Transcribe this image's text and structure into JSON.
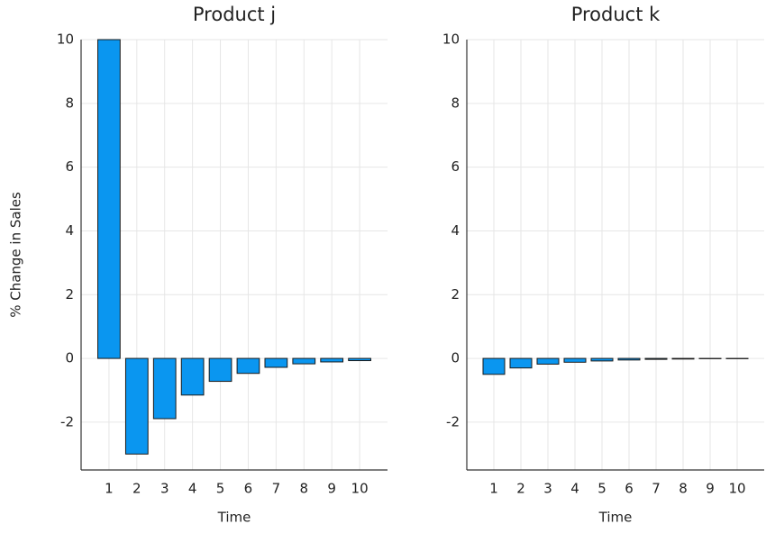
{
  "chart_data": [
    {
      "type": "bar",
      "title": "Product j",
      "xlabel": "Time",
      "ylabel": "% Change in Sales",
      "x": [
        1,
        2,
        3,
        4,
        5,
        6,
        7,
        8,
        9,
        10
      ],
      "values": [
        10,
        -3.0,
        -1.89,
        -1.15,
        -0.72,
        -0.47,
        -0.28,
        -0.17,
        -0.11,
        -0.07
      ],
      "color": "#0a96f0",
      "xlim": [
        0,
        11
      ],
      "xticks": [
        1,
        2,
        3,
        4,
        5,
        6,
        7,
        8,
        9,
        10
      ],
      "ylim": [
        -3.5,
        10
      ],
      "yticks": [
        -2,
        0,
        2,
        4,
        6,
        8,
        10
      ],
      "grid": true
    },
    {
      "type": "bar",
      "title": "Product k",
      "xlabel": "Time",
      "x": [
        1,
        2,
        3,
        4,
        5,
        6,
        7,
        8,
        9,
        10
      ],
      "values": [
        -0.5,
        -0.3,
        -0.18,
        -0.12,
        -0.08,
        -0.05,
        -0.03,
        -0.02,
        -0.01,
        -0.01
      ],
      "color": "#0a96f0",
      "xlim": [
        0,
        11
      ],
      "xticks": [
        1,
        2,
        3,
        4,
        5,
        6,
        7,
        8,
        9,
        10
      ],
      "ylim": [
        -3.5,
        10
      ],
      "yticks": [
        -2,
        0,
        2,
        4,
        6,
        8,
        10
      ],
      "grid": true
    }
  ]
}
